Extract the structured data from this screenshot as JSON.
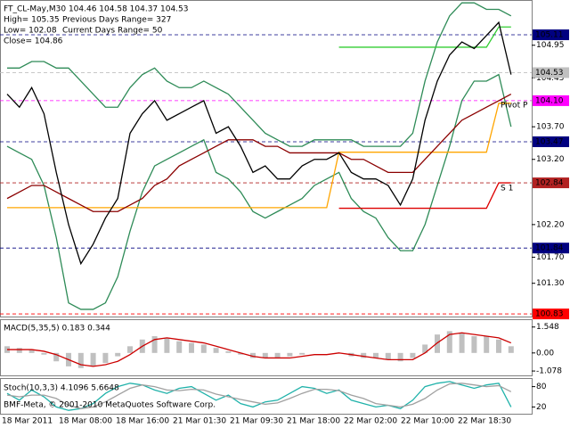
{
  "chart_data": [
    {
      "type": "line",
      "title": "FT_CL-May,M30  104.46 104.58 104.37 104.53",
      "annotations": [
        "High= 105.35",
        "Previous Days Range= 327",
        "Low= 102.08",
        "Current Days Range= 50",
        "Close= 104.86",
        "Pivot P",
        "S 1"
      ],
      "ylim": [
        100.79,
        105.63
      ],
      "yticks": [
        {
          "value": 104.95,
          "label": "104.95"
        },
        {
          "value": 104.45,
          "label": "104.45"
        },
        {
          "value": 103.7,
          "label": "103.70"
        },
        {
          "value": 103.2,
          "label": "103.20"
        },
        {
          "value": 102.2,
          "label": "102.20"
        },
        {
          "value": 101.7,
          "label": "101.70"
        },
        {
          "value": 101.3,
          "label": "101.30"
        }
      ],
      "levels": [
        {
          "price": 105.11,
          "color": "#000080"
        },
        {
          "price": 104.53,
          "color": "#c0c0c0"
        },
        {
          "price": {
            "value": 104.1,
            "label": "104.10"
          },
          "color": "#ff00ff"
        },
        {
          "price": 103.47,
          "color": "#000080"
        },
        {
          "price": 102.84,
          "color": "#b22222"
        },
        {
          "price": 101.84,
          "color": "#000080"
        },
        {
          "price": 100.83,
          "color": "#ff0000"
        }
      ],
      "series": [
        {
          "color": "#2e8b57",
          "values": [
            104.6,
            104.6,
            104.7,
            104.7,
            104.6,
            104.6,
            104.4,
            104.2,
            104.0,
            104.0,
            104.3,
            104.5,
            104.6,
            104.4,
            104.3,
            104.3,
            104.4,
            104.3,
            104.2,
            104.0,
            103.8,
            103.6,
            103.5,
            103.4,
            103.4,
            103.5,
            103.5,
            103.5,
            103.5,
            103.4,
            103.4,
            103.4,
            103.4,
            103.6,
            104.4,
            105.0,
            105.4,
            105.6,
            105.6,
            105.5,
            105.5,
            105.4
          ]
        },
        {
          "color": "#2e8b57",
          "values": [
            103.4,
            103.3,
            103.2,
            102.8,
            102.0,
            101.0,
            100.9,
            100.9,
            101.0,
            101.4,
            102.1,
            102.7,
            103.1,
            103.2,
            103.3,
            103.4,
            103.5,
            103.0,
            102.9,
            102.7,
            102.4,
            102.3,
            102.4,
            102.5,
            102.6,
            102.8,
            102.9,
            103.0,
            102.6,
            102.4,
            102.3,
            102.0,
            101.8,
            101.8,
            102.2,
            102.8,
            103.4,
            104.1,
            104.4,
            104.4,
            104.5,
            103.7
          ]
        },
        {
          "color": "#ffa500",
          "values": [
            102.46,
            102.46,
            102.46,
            102.46,
            102.46,
            102.46,
            102.46,
            102.46,
            102.46,
            102.46,
            102.46,
            102.46,
            102.46,
            102.46,
            102.46,
            102.46,
            102.46,
            102.46,
            102.46,
            102.46,
            102.46,
            102.46,
            102.46,
            102.46,
            102.46,
            102.46,
            102.46,
            103.31,
            103.31,
            103.31,
            103.31,
            103.31,
            103.31,
            103.31,
            103.31,
            103.31,
            103.31,
            103.31,
            103.31,
            103.31,
            104.06,
            104.06
          ]
        },
        {
          "color": "#dd0000",
          "values": [
            null,
            null,
            null,
            null,
            null,
            null,
            null,
            null,
            null,
            null,
            null,
            null,
            null,
            null,
            null,
            null,
            null,
            null,
            null,
            null,
            null,
            null,
            null,
            null,
            null,
            null,
            null,
            102.45,
            102.45,
            102.45,
            102.45,
            102.45,
            102.45,
            102.45,
            102.45,
            102.45,
            102.45,
            102.45,
            102.45,
            102.45,
            102.84,
            102.84
          ]
        },
        {
          "color": "#32cd32",
          "values": [
            null,
            null,
            null,
            null,
            null,
            null,
            null,
            null,
            null,
            null,
            null,
            null,
            null,
            null,
            null,
            null,
            null,
            null,
            null,
            null,
            null,
            null,
            null,
            null,
            null,
            null,
            null,
            104.92,
            104.92,
            104.92,
            104.92,
            104.92,
            104.92,
            104.92,
            104.92,
            104.92,
            104.92,
            104.92,
            104.92,
            104.92,
            105.23,
            105.23
          ]
        },
        {
          "color": "#8b0000",
          "values": [
            102.6,
            102.7,
            102.8,
            102.8,
            102.7,
            102.6,
            102.5,
            102.4,
            102.4,
            102.4,
            102.5,
            102.6,
            102.8,
            102.9,
            103.1,
            103.2,
            103.3,
            103.4,
            103.5,
            103.5,
            103.5,
            103.4,
            103.4,
            103.3,
            103.3,
            103.3,
            103.3,
            103.3,
            103.2,
            103.2,
            103.1,
            103.0,
            103.0,
            103.0,
            103.2,
            103.4,
            103.6,
            103.8,
            103.9,
            104.0,
            104.1,
            104.2
          ]
        },
        {
          "color": "#000000",
          "values": [
            104.2,
            104.0,
            104.3,
            103.9,
            103.0,
            102.2,
            101.6,
            101.9,
            102.3,
            102.6,
            103.6,
            103.9,
            104.1,
            103.8,
            103.9,
            104.0,
            104.1,
            103.6,
            103.7,
            103.4,
            103.0,
            103.1,
            102.9,
            102.9,
            103.1,
            103.2,
            103.2,
            103.3,
            103.0,
            102.9,
            102.9,
            102.8,
            102.5,
            102.9,
            103.8,
            104.4,
            104.8,
            105.0,
            104.9,
            105.1,
            105.3,
            104.5
          ]
        }
      ]
    },
    {
      "type": "bar",
      "title": "MACD(5,35,5) 0.183 0.344",
      "ylim": [
        -1.34,
        1.96
      ],
      "yticks": [
        1.548,
        {
          "value": 0,
          "label": "0.00"
        },
        -1.078
      ],
      "series": [
        {
          "style": "bar",
          "color": "#c0c0c0",
          "values": [
            0.4,
            0.3,
            0.2,
            -0.1,
            -0.5,
            -0.8,
            -0.9,
            -0.8,
            -0.6,
            -0.2,
            0.4,
            0.8,
            1.0,
            0.9,
            0.7,
            0.6,
            0.5,
            0.3,
            0.1,
            -0.1,
            -0.3,
            -0.3,
            -0.3,
            -0.2,
            -0.1,
            0.0,
            0.0,
            0.0,
            -0.2,
            -0.3,
            -0.3,
            -0.4,
            -0.5,
            -0.3,
            0.5,
            1.1,
            1.3,
            1.2,
            1.0,
            1.0,
            0.8,
            0.4
          ]
        },
        {
          "style": "line",
          "color": "#cc0000",
          "values": [
            0.2,
            0.2,
            0.2,
            0.1,
            -0.1,
            -0.4,
            -0.7,
            -0.8,
            -0.7,
            -0.5,
            -0.1,
            0.4,
            0.8,
            0.9,
            0.8,
            0.7,
            0.6,
            0.4,
            0.2,
            0.0,
            -0.2,
            -0.3,
            -0.3,
            -0.3,
            -0.2,
            -0.1,
            -0.1,
            0.0,
            -0.1,
            -0.2,
            -0.3,
            -0.4,
            -0.4,
            -0.4,
            0.0,
            0.6,
            1.1,
            1.2,
            1.1,
            1.0,
            0.9,
            0.6
          ]
        }
      ]
    },
    {
      "type": "line",
      "title": "Stoch(10,3,3) 4.1096 5.6648",
      "annotations": [
        "BMF-Meta, © 2001-2010 MetaQuotes Software Corp."
      ],
      "x_labels": [
        "18 Mar 2011",
        "18 Mar 08:00",
        "18 Mar 16:00",
        "21 Mar 01:30",
        "21 Mar 09:30",
        "21 Mar 18:00",
        "22 Mar 02:00",
        "22 Mar 10:00",
        "22 Mar 18:30"
      ],
      "ylim": [
        0,
        100
      ],
      "yticks": [
        80,
        20
      ],
      "series": [
        {
          "color": "#20b2aa",
          "values": [
            60,
            40,
            70,
            50,
            20,
            10,
            15,
            30,
            60,
            80,
            90,
            85,
            70,
            60,
            75,
            80,
            60,
            40,
            55,
            30,
            20,
            35,
            40,
            60,
            80,
            75,
            60,
            70,
            40,
            30,
            20,
            25,
            15,
            40,
            80,
            90,
            95,
            85,
            75,
            85,
            90,
            20
          ]
        },
        {
          "color": "#a0a0a0",
          "values": [
            55,
            50,
            55,
            55,
            45,
            25,
            15,
            20,
            35,
            55,
            75,
            85,
            80,
            70,
            68,
            72,
            70,
            58,
            50,
            42,
            35,
            28,
            32,
            45,
            60,
            72,
            72,
            68,
            55,
            45,
            30,
            25,
            20,
            28,
            45,
            70,
            88,
            90,
            85,
            80,
            83,
            65
          ]
        }
      ]
    }
  ]
}
